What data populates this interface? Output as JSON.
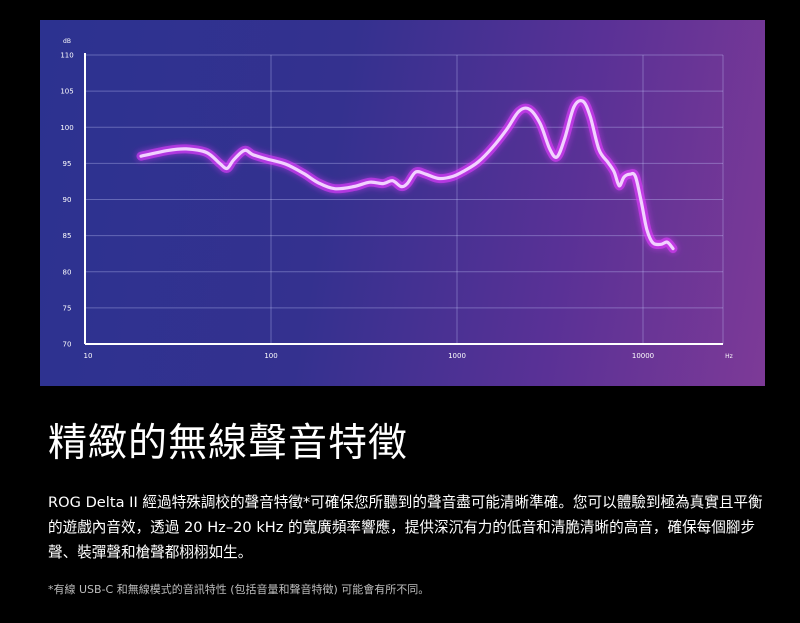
{
  "chart_data": {
    "type": "line",
    "y_unit": "dB",
    "x_unit": "Hz",
    "x_scale": "log",
    "xlim": [
      10,
      20000
    ],
    "ylim": [
      70,
      110
    ],
    "y_ticks": [
      110,
      105,
      100,
      95,
      90,
      85,
      80,
      75,
      70
    ],
    "x_ticks": [
      10,
      100,
      1000,
      10000
    ],
    "x_tick_labels": [
      "10",
      "100",
      "1000",
      "10000"
    ],
    "grid": true,
    "series": [
      {
        "color": "#f2d2ff",
        "glow": "#e23cff",
        "points": [
          [
            20,
            96.0
          ],
          [
            28,
            96.8
          ],
          [
            35,
            97.0
          ],
          [
            45,
            96.5
          ],
          [
            53,
            95.0
          ],
          [
            58,
            94.3
          ],
          [
            63,
            95.5
          ],
          [
            72,
            96.8
          ],
          [
            80,
            96.2
          ],
          [
            95,
            95.6
          ],
          [
            120,
            94.9
          ],
          [
            150,
            93.6
          ],
          [
            180,
            92.3
          ],
          [
            220,
            91.5
          ],
          [
            280,
            91.8
          ],
          [
            340,
            92.4
          ],
          [
            400,
            92.2
          ],
          [
            450,
            92.6
          ],
          [
            500,
            91.8
          ],
          [
            540,
            92.2
          ],
          [
            600,
            93.8
          ],
          [
            680,
            93.5
          ],
          [
            800,
            92.9
          ],
          [
            950,
            93.2
          ],
          [
            1100,
            94.0
          ],
          [
            1300,
            95.2
          ],
          [
            1550,
            97.2
          ],
          [
            1850,
            99.7
          ],
          [
            2150,
            102.2
          ],
          [
            2450,
            102.5
          ],
          [
            2800,
            100.5
          ],
          [
            3150,
            97.0
          ],
          [
            3450,
            95.9
          ],
          [
            3800,
            98.5
          ],
          [
            4250,
            102.8
          ],
          [
            4750,
            103.6
          ],
          [
            5200,
            101.5
          ],
          [
            5800,
            96.9
          ],
          [
            6500,
            95.1
          ],
          [
            7000,
            93.8
          ],
          [
            7450,
            91.9
          ],
          [
            7900,
            93.1
          ],
          [
            8500,
            93.5
          ],
          [
            9100,
            93.2
          ],
          [
            9800,
            89.6
          ],
          [
            10500,
            85.8
          ],
          [
            11300,
            84.0
          ],
          [
            12500,
            83.8
          ],
          [
            13500,
            84.1
          ],
          [
            14500,
            83.2
          ]
        ]
      }
    ]
  },
  "headline": "精緻的無線聲音特徵",
  "description": "ROG Delta II 經過特殊調校的聲音特徵*可確保您所聽到的聲音盡可能清晰準確。您可以體驗到極為真實且平衡的遊戲內音效，透過 20 Hz–20 kHz 的寬廣頻率響應，提供深沉有力的低音和清脆清晰的高音，確保每個腳步聲、裝彈聲和槍聲都栩栩如生。",
  "footnote": "*有線 USB-C 和無線模式的音訊特性 (包括音量和聲音特徵) 可能會有所不同。"
}
